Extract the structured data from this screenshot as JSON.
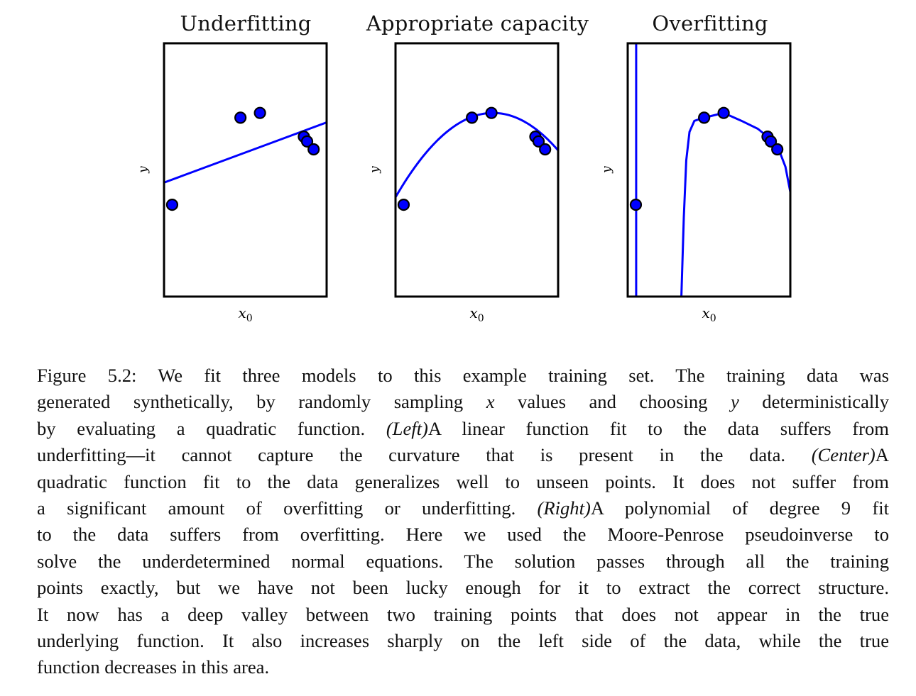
{
  "chart_data": [
    {
      "type": "scatter",
      "title": "Underfitting",
      "xlabel": "x0",
      "ylabel": "y",
      "fit": "linear",
      "points": [
        {
          "x": 0.05,
          "y": -2.6
        },
        {
          "x": 0.47,
          "y": 0.15
        },
        {
          "x": 0.59,
          "y": 0.3
        },
        {
          "x": 0.86,
          "y": -0.45
        },
        {
          "x": 0.88,
          "y": -0.6
        },
        {
          "x": 0.92,
          "y": -0.85
        }
      ],
      "curve": {
        "kind": "line",
        "y_at_x0": -1.9,
        "y_at_x1": 0.0
      }
    },
    {
      "type": "scatter",
      "title": "Appropriate capacity",
      "xlabel": "x0",
      "ylabel": "y",
      "fit": "quadratic",
      "points": [
        {
          "x": 0.05,
          "y": -2.6
        },
        {
          "x": 0.47,
          "y": 0.15
        },
        {
          "x": 0.59,
          "y": 0.3
        },
        {
          "x": 0.86,
          "y": -0.45
        },
        {
          "x": 0.88,
          "y": -0.6
        },
        {
          "x": 0.92,
          "y": -0.85
        }
      ],
      "curve": {
        "kind": "quadratic",
        "a": -7.4,
        "vertex_x": 0.6,
        "vertex_y": 0.3
      }
    },
    {
      "type": "scatter",
      "title": "Overfitting",
      "xlabel": "x0",
      "ylabel": "y",
      "fit": "degree-9 polynomial",
      "points": [
        {
          "x": 0.05,
          "y": -2.6
        },
        {
          "x": 0.47,
          "y": 0.15
        },
        {
          "x": 0.59,
          "y": 0.3
        },
        {
          "x": 0.86,
          "y": -0.45
        },
        {
          "x": 0.88,
          "y": -0.6
        },
        {
          "x": 0.92,
          "y": -0.85
        }
      ],
      "curve": {
        "kind": "polynomial",
        "samples": [
          [
            0.052,
            2.5
          ],
          [
            0.052,
            -5.5
          ],
          [
            0.33,
            -5.5
          ],
          [
            0.345,
            -3.0
          ],
          [
            0.36,
            -1.2
          ],
          [
            0.38,
            -0.3
          ],
          [
            0.41,
            0.05
          ],
          [
            0.47,
            0.15
          ],
          [
            0.59,
            0.3
          ],
          [
            0.7,
            0.05
          ],
          [
            0.8,
            -0.2
          ],
          [
            0.86,
            -0.45
          ],
          [
            0.9,
            -0.7
          ],
          [
            0.94,
            -1.0
          ],
          [
            0.97,
            -1.4
          ],
          [
            1.0,
            -2.2
          ]
        ]
      },
      "ylim_data": [
        -5.5,
        2.5
      ]
    }
  ],
  "axes": {
    "xlim": [
      0,
      1
    ],
    "ylim": [
      -5.5,
      2.5
    ],
    "grid": false
  },
  "colors": {
    "series": "#0000ff",
    "frame": "#000000"
  },
  "caption": {
    "lines": [
      [
        {
          "t": "Figure 5.2: We fit three models to this example training set.  The training data was"
        }
      ],
      [
        {
          "t": "generated synthetically, by randomly sampling "
        },
        {
          "t": "x",
          "i": true
        },
        {
          "t": " values and choosing "
        },
        {
          "t": "y",
          "i": true
        },
        {
          "t": " deterministically"
        }
      ],
      [
        {
          "t": "by evaluating a quadratic function.  "
        },
        {
          "t": "(Left)",
          "i": true
        },
        {
          "t": "A linear function fit to the data suffers from"
        }
      ],
      [
        {
          "t": "underfitting—it cannot capture the curvature that is present in the data.  "
        },
        {
          "t": "(Center)",
          "i": true
        },
        {
          "t": "A"
        }
      ],
      [
        {
          "t": "quadratic function fit to the data generalizes well to unseen points. It does not suffer from"
        }
      ],
      [
        {
          "t": "a significant amount of overfitting or underfitting.  "
        },
        {
          "t": "(Right)",
          "i": true
        },
        {
          "t": "A polynomial of degree 9 fit"
        }
      ],
      [
        {
          "t": "to the data suffers from overfitting. Here we used the Moore-Penrose pseudoinverse to"
        }
      ],
      [
        {
          "t": "solve the underdetermined normal equations. The solution passes through all the training"
        }
      ],
      [
        {
          "t": "points exactly, but we have not been lucky enough for it to extract the correct structure."
        }
      ],
      [
        {
          "t": "It now has a deep valley between two training points that does not appear in the true"
        }
      ],
      [
        {
          "t": "underlying function. It also increases sharply on the left side of the data, while the true"
        }
      ],
      [
        {
          "t": "function decreases in this area."
        }
      ]
    ]
  }
}
